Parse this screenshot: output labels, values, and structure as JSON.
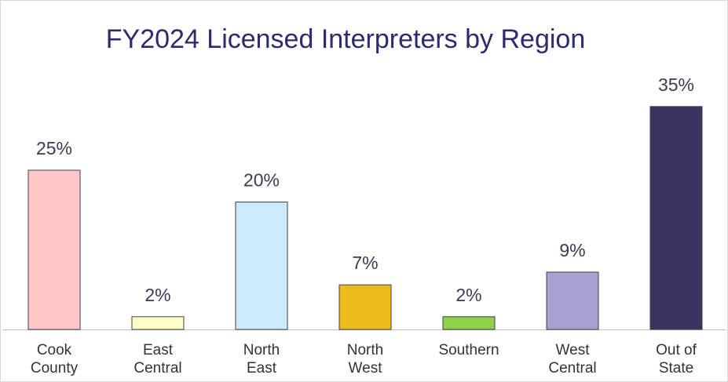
{
  "chart_data": {
    "type": "bar",
    "title": "FY2024 Licensed Interpreters by Region",
    "categories": [
      "Cook County",
      "East Central",
      "North East",
      "North West",
      "Southern",
      "West Central",
      "Out of State"
    ],
    "values": [
      25,
      2,
      20,
      7,
      2,
      9,
      35
    ],
    "value_labels": [
      "25%",
      "2%",
      "20%",
      "7%",
      "2%",
      "9%",
      "35%"
    ],
    "colors": [
      "#ffc7c7",
      "#ffffc6",
      "#cdeaff",
      "#ecbd1c",
      "#8fd14c",
      "#a8a0d0",
      "#3a335f"
    ]
  }
}
